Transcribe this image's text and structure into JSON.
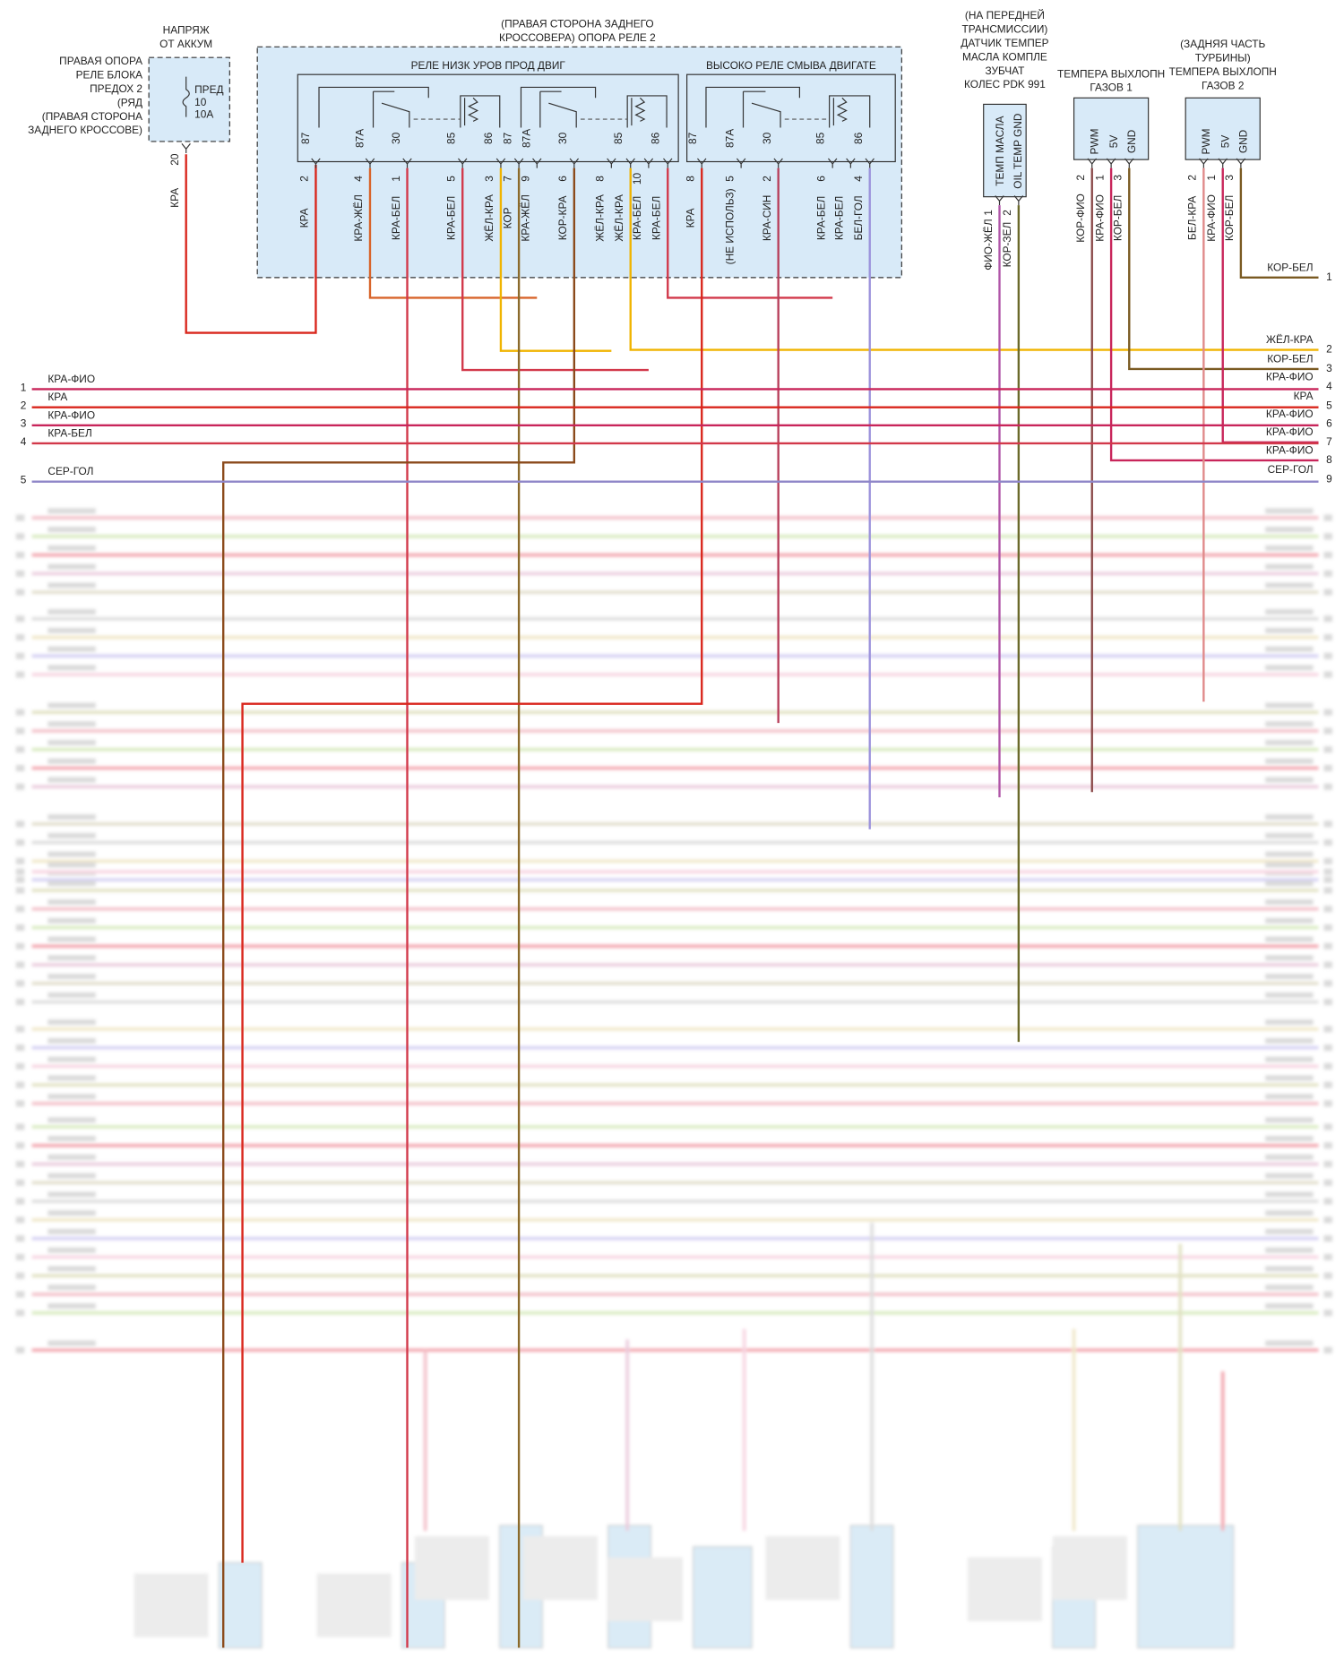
{
  "fuse": {
    "title": [
      "НАПРЯЖ",
      "ОТ АККУМ"
    ],
    "location": [
      "ПРАВАЯ ОПОРА",
      "РЕЛЕ БЛОКА",
      "ПРЕДОХ 2",
      "(РЯД",
      "(ПРАВАЯ СТОРОНА",
      "ЗАДНЕГО КРОССОВЕ)"
    ],
    "labels": [
      "ПРЕД",
      "10",
      "10A"
    ],
    "pin": "20",
    "wire": "КРА",
    "color": "#d9261c"
  },
  "relay_box": {
    "title": [
      "(ПРАВАЯ СТОРОНА ЗАДНЕГО",
      "КРОССОВЕРА) ОПОРА РЕЛЕ 2"
    ],
    "relays": [
      {
        "title": "РЕЛЕ НИЗК УРОВ ПРОД ДВИГ",
        "terminals": [
          "87",
          "87A",
          "30",
          "85",
          "86",
          "87",
          "87A",
          "30",
          "85",
          "86"
        ],
        "pins": [
          {
            "pin": "2",
            "wire": "КРА",
            "color": "#d9261c"
          },
          {
            "pin": "4",
            "wire": "КРА-ЖЁЛ",
            "color": "#d8642a"
          },
          {
            "pin": "1",
            "wire": "КРА-БЕЛ",
            "color": "#d2384a"
          },
          {
            "pin": "5",
            "wire": "КРА-БЕЛ",
            "color": "#d2384a"
          },
          {
            "pin": "3",
            "wire": "ЖЁЛ-КРА",
            "color": "#f0b400"
          },
          {
            "pin": "7",
            "wire": "КОР",
            "color": "#8b6a2b"
          },
          {
            "pin": "9",
            "wire": "КРА-ЖЁЛ",
            "color": "#d8642a"
          },
          {
            "pin": "6",
            "wire": "КОР-КРА",
            "color": "#8b4a1b"
          },
          {
            "pin": "8",
            "wire": "ЖЁЛ-КРА",
            "color": "#f0b400"
          },
          {
            "wire": "ЖЁЛ-КРА",
            "color": "#f0b400"
          },
          {
            "pin": "10",
            "wire": "КРА-БЕЛ",
            "color": "#d2384a"
          },
          {
            "wire": "КРА-БЕЛ",
            "color": "#d2384a"
          }
        ]
      },
      {
        "title": "ВЫСОКО РЕЛЕ СМЫВА ДВИГАТЕ",
        "terminals": [
          "87",
          "87A",
          "30",
          "85",
          "86"
        ],
        "pins": [
          {
            "pin": "8",
            "wire": "КРА",
            "color": "#d9261c"
          },
          {
            "pin": "5",
            "wire": "(НЕ ИСПОЛЬЗ)",
            "color": "#999999"
          },
          {
            "pin": "2",
            "wire": "КРА-СИН",
            "color": "#b8405c"
          },
          {
            "pin": "6",
            "wire": "КРА-БЕЛ",
            "color": "#d2384a"
          },
          {
            "wire": "КРА-БЕЛ",
            "color": "#d2384a"
          },
          {
            "pin": "4",
            "wire": "БЕЛ-ГОЛ",
            "color": "#9c93dc"
          }
        ]
      }
    ]
  },
  "sensors": [
    {
      "title": [
        "(НА ПЕРЕДНЕЙ",
        "ТРАНСМИССИИ)",
        "ДАТЧИК ТЕМПЕР",
        "МАСЛА КОМПЛЕ",
        "ЗУБЧАТ",
        "КОЛЕС PDK 991"
      ],
      "terminals": [
        "ТЕМП МАСЛА",
        "OIL TEMP GND"
      ],
      "pins": [
        {
          "pin": "1",
          "wire": "ФИО-ЖЁЛ",
          "color": "#b055a8"
        },
        {
          "pin": "2",
          "wire": "КОР-ЗЕЛ",
          "color": "#6b6a2b"
        }
      ]
    },
    {
      "title": [
        "ТЕМПЕРА ВЫХЛОПН",
        "ГАЗОВ 1"
      ],
      "terminals": [
        "PWM",
        "5V",
        "GND"
      ],
      "pins": [
        {
          "pin": "2",
          "wire": "КОР-ФИО",
          "color": "#8b4a4a"
        },
        {
          "pin": "1",
          "wire": "КРА-ФИО",
          "color": "#c8255a"
        },
        {
          "pin": "3",
          "wire": "КОР-БЕЛ",
          "color": "#7a5a22"
        }
      ]
    },
    {
      "title": [
        "(ЗАДНЯЯ ЧАСТЬ",
        "ТУРБИНЫ)",
        "ТЕМПЕРА ВЫХЛОПН",
        "ГАЗОВ 2"
      ],
      "terminals": [
        "PWM",
        "5V",
        "GND"
      ],
      "pins": [
        {
          "pin": "2",
          "wire": "БЕЛ-КРА",
          "color": "#e08a8a"
        },
        {
          "pin": "1",
          "wire": "КРА-ФИО",
          "color": "#c8255a"
        },
        {
          "pin": "3",
          "wire": "КОР-БЕЛ",
          "color": "#7a5a22"
        }
      ]
    }
  ],
  "left_bus": [
    {
      "num": "1",
      "wire": "КРА-ФИО",
      "color": "#c8255a"
    },
    {
      "num": "2",
      "wire": "КРА",
      "color": "#d9261c"
    },
    {
      "num": "3",
      "wire": "КРА-ФИО",
      "color": "#c8255a"
    },
    {
      "num": "4",
      "wire": "КРА-БЕЛ",
      "color": "#d2384a"
    },
    {
      "num": "5",
      "wire": "СЕР-ГОЛ",
      "color": "#8f86c8"
    }
  ],
  "right_bus": [
    {
      "num": "1",
      "wire": "КОР-БЕЛ",
      "color": "#7a5a22"
    },
    {
      "num": "2",
      "wire": "ЖЁЛ-КРА",
      "color": "#f0b400"
    },
    {
      "num": "3",
      "wire": "КОР-БЕЛ",
      "color": "#7a5a22"
    },
    {
      "num": "4",
      "wire": "КРА-ФИО",
      "color": "#c8255a"
    },
    {
      "num": "5",
      "wire": "КРА",
      "color": "#d9261c"
    },
    {
      "num": "6",
      "wire": "КРА-ФИО",
      "color": "#c8255a"
    },
    {
      "num": "7",
      "wire": "КРА-ФИО",
      "color": "#c8255a"
    },
    {
      "num": "8",
      "wire": "КРА-ФИО",
      "color": "#c8255a"
    },
    {
      "num": "9",
      "wire": "СЕР-ГОЛ",
      "color": "#8f86c8"
    }
  ]
}
